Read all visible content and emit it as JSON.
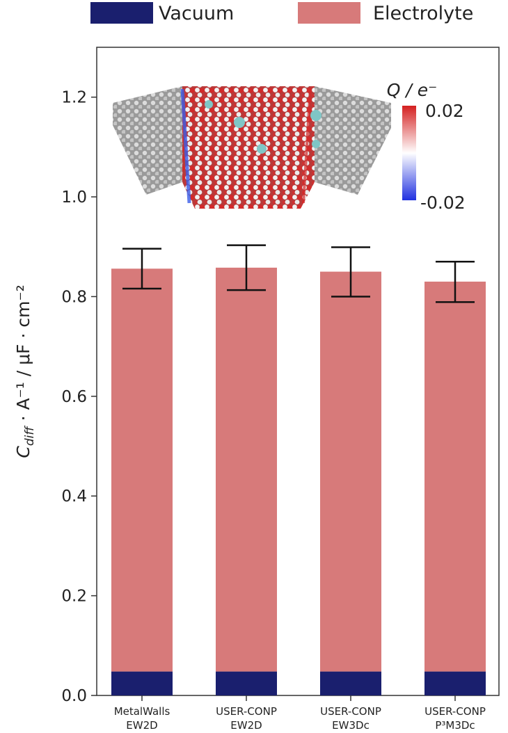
{
  "chart_data": {
    "type": "bar",
    "stacked": true,
    "categories": [
      {
        "line1": "MetalWalls",
        "line2": "EW2D"
      },
      {
        "line1": "USER-CONP",
        "line2": "EW2D"
      },
      {
        "line1": "USER-CONP",
        "line2": "EW3Dc"
      },
      {
        "line1": "USER-CONP",
        "line2": "P³M3Dc"
      }
    ],
    "series": [
      {
        "name": "Vacuum",
        "color": "#1a1f6e",
        "values": [
          0.048,
          0.048,
          0.048,
          0.048
        ]
      },
      {
        "name": "Electrolyte",
        "color": "#d77a7a",
        "values": [
          0.808,
          0.81,
          0.802,
          0.782
        ]
      }
    ],
    "error_bars": {
      "center": [
        0.856,
        0.858,
        0.85,
        0.83
      ],
      "low": [
        0.816,
        0.813,
        0.8,
        0.789
      ],
      "high": [
        0.896,
        0.903,
        0.899,
        0.87
      ]
    },
    "ylabel": {
      "main": "C",
      "sub": "diff",
      "rest": " · A⁻¹ / μF · cm⁻²"
    },
    "ylim": [
      0,
      1.3
    ],
    "yticks": [
      "0.0",
      "0.2",
      "0.4",
      "0.6",
      "0.8",
      "1.0",
      "1.2"
    ],
    "ytick_values": [
      0,
      0.2,
      0.4,
      0.6,
      0.8,
      1.0,
      1.2
    ],
    "legend_placement": "top",
    "grid": false,
    "inset": {
      "colorbar_title": "Q / e⁻",
      "colorbar_max": "0.02",
      "colorbar_min": "-0.02",
      "colors": {
        "positive": "#d42020",
        "neutral": "#ffffff",
        "negative": "#2030e0"
      }
    }
  }
}
